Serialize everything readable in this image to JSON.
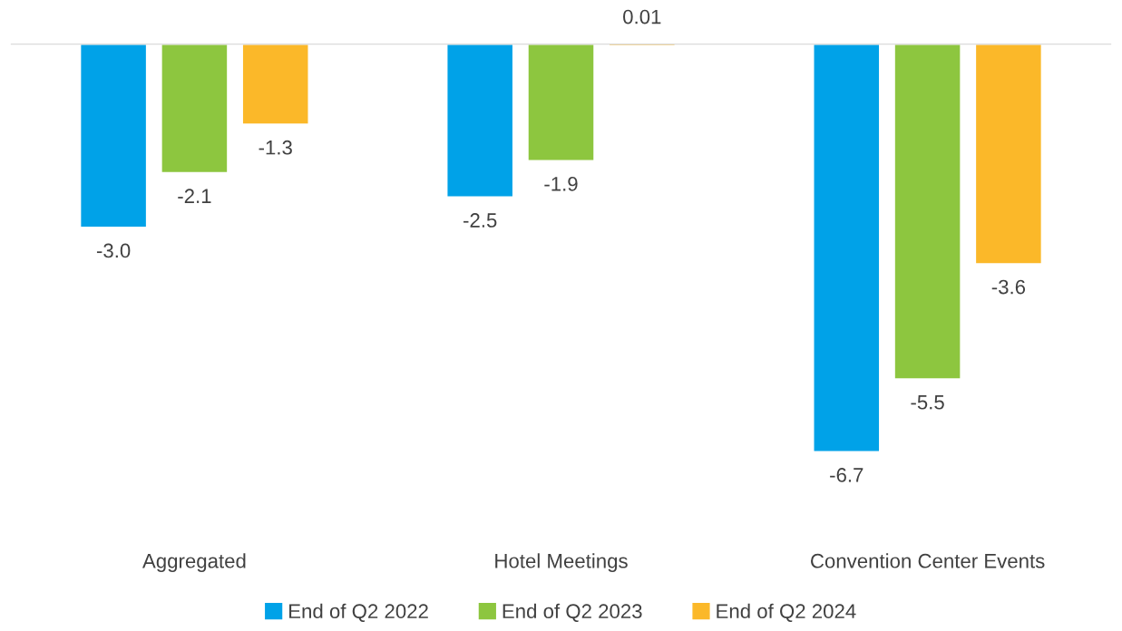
{
  "chart_data": {
    "type": "bar",
    "categories": [
      "Aggregated",
      "Hotel Meetings",
      "Convention Center Events"
    ],
    "series": [
      {
        "name": "End of Q2 2022",
        "color": "#00a2e8",
        "values": [
          -3.0,
          -2.5,
          -6.7
        ],
        "value_labels": [
          "-3.0",
          "-2.5",
          "-6.7"
        ]
      },
      {
        "name": "End of Q2 2023",
        "color": "#8dc63f",
        "values": [
          -2.1,
          -1.9,
          -5.5
        ],
        "value_labels": [
          "-2.1",
          "-1.9",
          "-5.5"
        ]
      },
      {
        "name": "End of Q2 2024",
        "color": "#fbb829",
        "values": [
          -1.3,
          0.01,
          -3.6
        ],
        "value_labels": [
          "-1.3",
          "0.01",
          "-3.6"
        ]
      }
    ],
    "legend": "bottom"
  }
}
